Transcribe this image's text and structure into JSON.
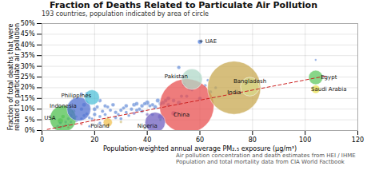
{
  "chart_data": {
    "type": "scatter",
    "title": "Fraction of Deaths Related to Particulate Air Pollution",
    "subtitle": "193 countries, population indicated by area of circle",
    "note": "Air pollution concentration and death estimates from HEI / IHME\nPopulation and total mortality data from CIA World Factbook",
    "xlabel": "Population-weighted annual average PM₂.₅ exposure (μg/m³)",
    "ylabel": "Fraction of total deaths that were\nrelated to particulate air pollution",
    "xlim": [
      0,
      120
    ],
    "ylim": [
      0,
      0.5
    ],
    "xticks": [
      0,
      20,
      40,
      60,
      80,
      100,
      120
    ],
    "yticks": [
      {
        "value": 0.0,
        "label": "0%"
      },
      {
        "value": 0.05,
        "label": "5%"
      },
      {
        "value": 0.1,
        "label": "10%"
      },
      {
        "value": 0.15,
        "label": "15%"
      },
      {
        "value": 0.2,
        "label": "20%"
      },
      {
        "value": 0.25,
        "label": "25%"
      },
      {
        "value": 0.3,
        "label": "30%"
      },
      {
        "value": 0.35,
        "label": "35%"
      },
      {
        "value": 0.4,
        "label": "40%"
      },
      {
        "value": 0.45,
        "label": "45%"
      },
      {
        "value": 0.5,
        "label": "50%"
      }
    ],
    "grid": true,
    "trend": {
      "x": [
        2,
        108
      ],
      "y": [
        0.005,
        0.255
      ],
      "color": "#cc2020",
      "line_style": "dashed"
    },
    "countries": [
      {
        "label": "China",
        "x": 55,
        "y": 0.115,
        "population": 1380,
        "color": "#e85050",
        "label_x": 53,
        "label_y": 0.072
      },
      {
        "label": "India",
        "x": 73,
        "y": 0.2,
        "population": 1320,
        "color": "#c8a850",
        "label_x": 73,
        "label_y": 0.178
      },
      {
        "label": "Bangladesh",
        "x": 79,
        "y": 0.205,
        "population": 165,
        "color": "#d8d88a",
        "label_x": 79,
        "label_y": 0.232
      },
      {
        "label": "Pakistan",
        "x": 57,
        "y": 0.24,
        "population": 200,
        "color": "#b0d8c8",
        "label_x": 51,
        "label_y": 0.253
      },
      {
        "label": "Egypt",
        "x": 104,
        "y": 0.248,
        "population": 95,
        "color": "#60c860",
        "label_x": 109,
        "label_y": 0.248
      },
      {
        "label": "Saudi Arabia",
        "x": 104,
        "y": 0.193,
        "population": 33,
        "color": "#e8e050",
        "label_x": 109,
        "label_y": 0.193
      },
      {
        "label": "Nigeria",
        "x": 43,
        "y": 0.038,
        "population": 190,
        "color": "#7060c0",
        "label_x": 40,
        "label_y": 0.022
      },
      {
        "label": "Indonesia",
        "x": 14,
        "y": 0.1,
        "population": 264,
        "color": "#5070d0",
        "label_x": 8,
        "label_y": 0.113
      },
      {
        "label": "Philippines",
        "x": 19,
        "y": 0.155,
        "population": 105,
        "color": "#50c0d8",
        "label_x": 13,
        "label_y": 0.164
      },
      {
        "label": "Poland",
        "x": 25,
        "y": 0.038,
        "population": 38,
        "color": "#f0c050",
        "label_x": 22,
        "label_y": 0.022
      },
      {
        "label": "USA",
        "x": 8,
        "y": 0.055,
        "population": 325,
        "color": "#50c050",
        "label_x": 3,
        "label_y": 0.058
      },
      {
        "label": "+ UAE",
        "x": 60,
        "y": 0.415,
        "population": 10,
        "color": "#5080e0",
        "label_x": 63,
        "label_y": 0.418
      }
    ],
    "scatter": [
      {
        "x": 5,
        "y": 0.01,
        "size": 8,
        "color": "#4a78d0"
      },
      {
        "x": 6,
        "y": 0.02,
        "size": 12,
        "color": "#4a78d0"
      },
      {
        "x": 7,
        "y": 0.015,
        "size": 10,
        "color": "#4a78d0"
      },
      {
        "x": 7,
        "y": 0.035,
        "size": 15,
        "color": "#4a78d0"
      },
      {
        "x": 7,
        "y": 0.045,
        "size": 40,
        "color": "#50c050"
      },
      {
        "x": 8,
        "y": 0.02,
        "size": 8,
        "color": "#4a78d0"
      },
      {
        "x": 8,
        "y": 0.065,
        "size": 20,
        "color": "#50c050"
      },
      {
        "x": 9,
        "y": 0.025,
        "size": 10,
        "color": "#4a78d0"
      },
      {
        "x": 9,
        "y": 0.04,
        "size": 12,
        "color": "#4a78d0"
      },
      {
        "x": 10,
        "y": 0.015,
        "size": 8,
        "color": "#e05050"
      },
      {
        "x": 10,
        "y": 0.028,
        "size": 6,
        "color": "#4a78d0"
      },
      {
        "x": 10,
        "y": 0.055,
        "size": 14,
        "color": "#4a78d0"
      },
      {
        "x": 11,
        "y": 0.04,
        "size": 10,
        "color": "#4a78d0"
      },
      {
        "x": 11,
        "y": 0.07,
        "size": 16,
        "color": "#4a78d0"
      },
      {
        "x": 12,
        "y": 0.055,
        "size": 14,
        "color": "#4a78d0"
      },
      {
        "x": 12,
        "y": 0.09,
        "size": 20,
        "color": "#50c050"
      },
      {
        "x": 13,
        "y": 0.045,
        "size": 12,
        "color": "#4a78d0"
      },
      {
        "x": 13,
        "y": 0.065,
        "size": 10,
        "color": "#4a78d0"
      },
      {
        "x": 15,
        "y": 0.03,
        "size": 8,
        "color": "#e05050"
      },
      {
        "x": 15,
        "y": 0.055,
        "size": 12,
        "color": "#4a78d0"
      },
      {
        "x": 15,
        "y": 0.1,
        "size": 18,
        "color": "#4a78d0"
      },
      {
        "x": 15,
        "y": 0.17,
        "size": 16,
        "color": "#4a78d0"
      },
      {
        "x": 16,
        "y": 0.07,
        "size": 14,
        "color": "#4a78d0"
      },
      {
        "x": 16,
        "y": 0.12,
        "size": 22,
        "color": "#4a78d0"
      },
      {
        "x": 17,
        "y": 0.078,
        "size": 12,
        "color": "#4a78d0"
      },
      {
        "x": 17,
        "y": 0.175,
        "size": 10,
        "color": "#4a78d0"
      },
      {
        "x": 18,
        "y": 0.02,
        "size": 8,
        "color": "#4a78d0"
      },
      {
        "x": 18,
        "y": 0.06,
        "size": 12,
        "color": "#4a78d0"
      },
      {
        "x": 19,
        "y": 0.055,
        "size": 10,
        "color": "#4a78d0"
      },
      {
        "x": 20,
        "y": 0.05,
        "size": 8,
        "color": "#e05050"
      },
      {
        "x": 20,
        "y": 0.075,
        "size": 18,
        "color": "#4a78d0"
      },
      {
        "x": 20,
        "y": 0.1,
        "size": 22,
        "color": "#4a78d0"
      },
      {
        "x": 21,
        "y": 0.11,
        "size": 16,
        "color": "#4a78d0"
      },
      {
        "x": 22,
        "y": 0.035,
        "size": 12,
        "color": "#4a78d0"
      },
      {
        "x": 22,
        "y": 0.065,
        "size": 14,
        "color": "#4a78d0"
      },
      {
        "x": 22,
        "y": 0.14,
        "size": 20,
        "color": "#4a78d0"
      },
      {
        "x": 23,
        "y": 0.09,
        "size": 16,
        "color": "#4a78d0"
      },
      {
        "x": 24,
        "y": 0.075,
        "size": 14,
        "color": "#4a78d0"
      },
      {
        "x": 24,
        "y": 0.115,
        "size": 18,
        "color": "#4a78d0"
      },
      {
        "x": 25,
        "y": 0.06,
        "size": 10,
        "color": "#c8b464"
      },
      {
        "x": 25,
        "y": 0.11,
        "size": 14,
        "color": "#4a78d0"
      },
      {
        "x": 26,
        "y": 0.095,
        "size": 16,
        "color": "#4a78d0"
      },
      {
        "x": 27,
        "y": 0.12,
        "size": 20,
        "color": "#4a78d0"
      },
      {
        "x": 28,
        "y": 0.06,
        "size": 14,
        "color": "#4a78d0"
      },
      {
        "x": 28,
        "y": 0.085,
        "size": 18,
        "color": "#4a78d0"
      },
      {
        "x": 29,
        "y": 0.075,
        "size": 12,
        "color": "#4a78d0"
      },
      {
        "x": 30,
        "y": 0.04,
        "size": 10,
        "color": "#c8b464"
      },
      {
        "x": 30,
        "y": 0.055,
        "size": 14,
        "color": "#4a78d0"
      },
      {
        "x": 30,
        "y": 0.095,
        "size": 18,
        "color": "#4a78d0"
      },
      {
        "x": 31,
        "y": 0.105,
        "size": 16,
        "color": "#4a78d0"
      },
      {
        "x": 32,
        "y": 0.085,
        "size": 14,
        "color": "#4a78d0"
      },
      {
        "x": 32,
        "y": 0.115,
        "size": 20,
        "color": "#4a78d0"
      },
      {
        "x": 33,
        "y": 0.07,
        "size": 12,
        "color": "#4a78d0"
      },
      {
        "x": 34,
        "y": 0.1,
        "size": 18,
        "color": "#4a78d0"
      },
      {
        "x": 35,
        "y": 0.08,
        "size": 14,
        "color": "#7060c0"
      },
      {
        "x": 35,
        "y": 0.12,
        "size": 22,
        "color": "#4a78d0"
      },
      {
        "x": 36,
        "y": 0.095,
        "size": 16,
        "color": "#4a78d0"
      },
      {
        "x": 36,
        "y": 0.125,
        "size": 20,
        "color": "#4a78d0"
      },
      {
        "x": 37,
        "y": 0.1,
        "size": 18,
        "color": "#4a78d0"
      },
      {
        "x": 38,
        "y": 0.09,
        "size": 16,
        "color": "#4a78d0"
      },
      {
        "x": 38,
        "y": 0.115,
        "size": 20,
        "color": "#4a78d0"
      },
      {
        "x": 39,
        "y": 0.125,
        "size": 18,
        "color": "#4a78d0"
      },
      {
        "x": 40,
        "y": 0.075,
        "size": 14,
        "color": "#7060c0"
      },
      {
        "x": 40,
        "y": 0.13,
        "size": 28,
        "color": "#4a78d0"
      },
      {
        "x": 41,
        "y": 0.115,
        "size": 16,
        "color": "#4a78d0"
      },
      {
        "x": 42,
        "y": 0.075,
        "size": 14,
        "color": "#4a78d0"
      },
      {
        "x": 42,
        "y": 0.12,
        "size": 18,
        "color": "#4a78d0"
      },
      {
        "x": 43,
        "y": 0.11,
        "size": 22,
        "color": "#4a78d0"
      },
      {
        "x": 44,
        "y": 0.14,
        "size": 24,
        "color": "#4a78d0"
      },
      {
        "x": 45,
        "y": 0.05,
        "size": 10,
        "color": "#50c050"
      },
      {
        "x": 45,
        "y": 0.065,
        "size": 35,
        "color": "#7060c0"
      },
      {
        "x": 45,
        "y": 0.125,
        "size": 20,
        "color": "#4a78d0"
      },
      {
        "x": 46,
        "y": 0.13,
        "size": 22,
        "color": "#4a78d0"
      },
      {
        "x": 47,
        "y": 0.14,
        "size": 20,
        "color": "#4a78d0"
      },
      {
        "x": 48,
        "y": 0.12,
        "size": 18,
        "color": "#4a78d0"
      },
      {
        "x": 48,
        "y": 0.15,
        "size": 22,
        "color": "#4a78d0"
      },
      {
        "x": 50,
        "y": 0.08,
        "size": 30,
        "color": "#7060c0"
      },
      {
        "x": 50,
        "y": 0.14,
        "size": 20,
        "color": "#4a78d0"
      },
      {
        "x": 52,
        "y": 0.13,
        "size": 24,
        "color": "#4a78d0"
      },
      {
        "x": 52,
        "y": 0.295,
        "size": 18,
        "color": "#4a78d0"
      },
      {
        "x": 53,
        "y": 0.16,
        "size": 16,
        "color": "#4a78d0"
      },
      {
        "x": 54,
        "y": 0.215,
        "size": 20,
        "color": "#4a78d0"
      },
      {
        "x": 55,
        "y": 0.16,
        "size": 16,
        "color": "#4a78d0"
      },
      {
        "x": 56,
        "y": 0.195,
        "size": 18,
        "color": "#4a78d0"
      },
      {
        "x": 57,
        "y": 0.19,
        "size": 14,
        "color": "#4a78d0"
      },
      {
        "x": 60,
        "y": 0.15,
        "size": 20,
        "color": "#4a78d0"
      },
      {
        "x": 62,
        "y": 0.21,
        "size": 14,
        "color": "#4a78d0"
      },
      {
        "x": 63,
        "y": 0.235,
        "size": 10,
        "color": "#4a78d0"
      },
      {
        "x": 64,
        "y": 0.18,
        "size": 16,
        "color": "#4a78d0"
      },
      {
        "x": 66,
        "y": 0.2,
        "size": 12,
        "color": "#4a78d0"
      },
      {
        "x": 104,
        "y": 0.33,
        "size": 6,
        "color": "#4a78d0"
      }
    ]
  }
}
